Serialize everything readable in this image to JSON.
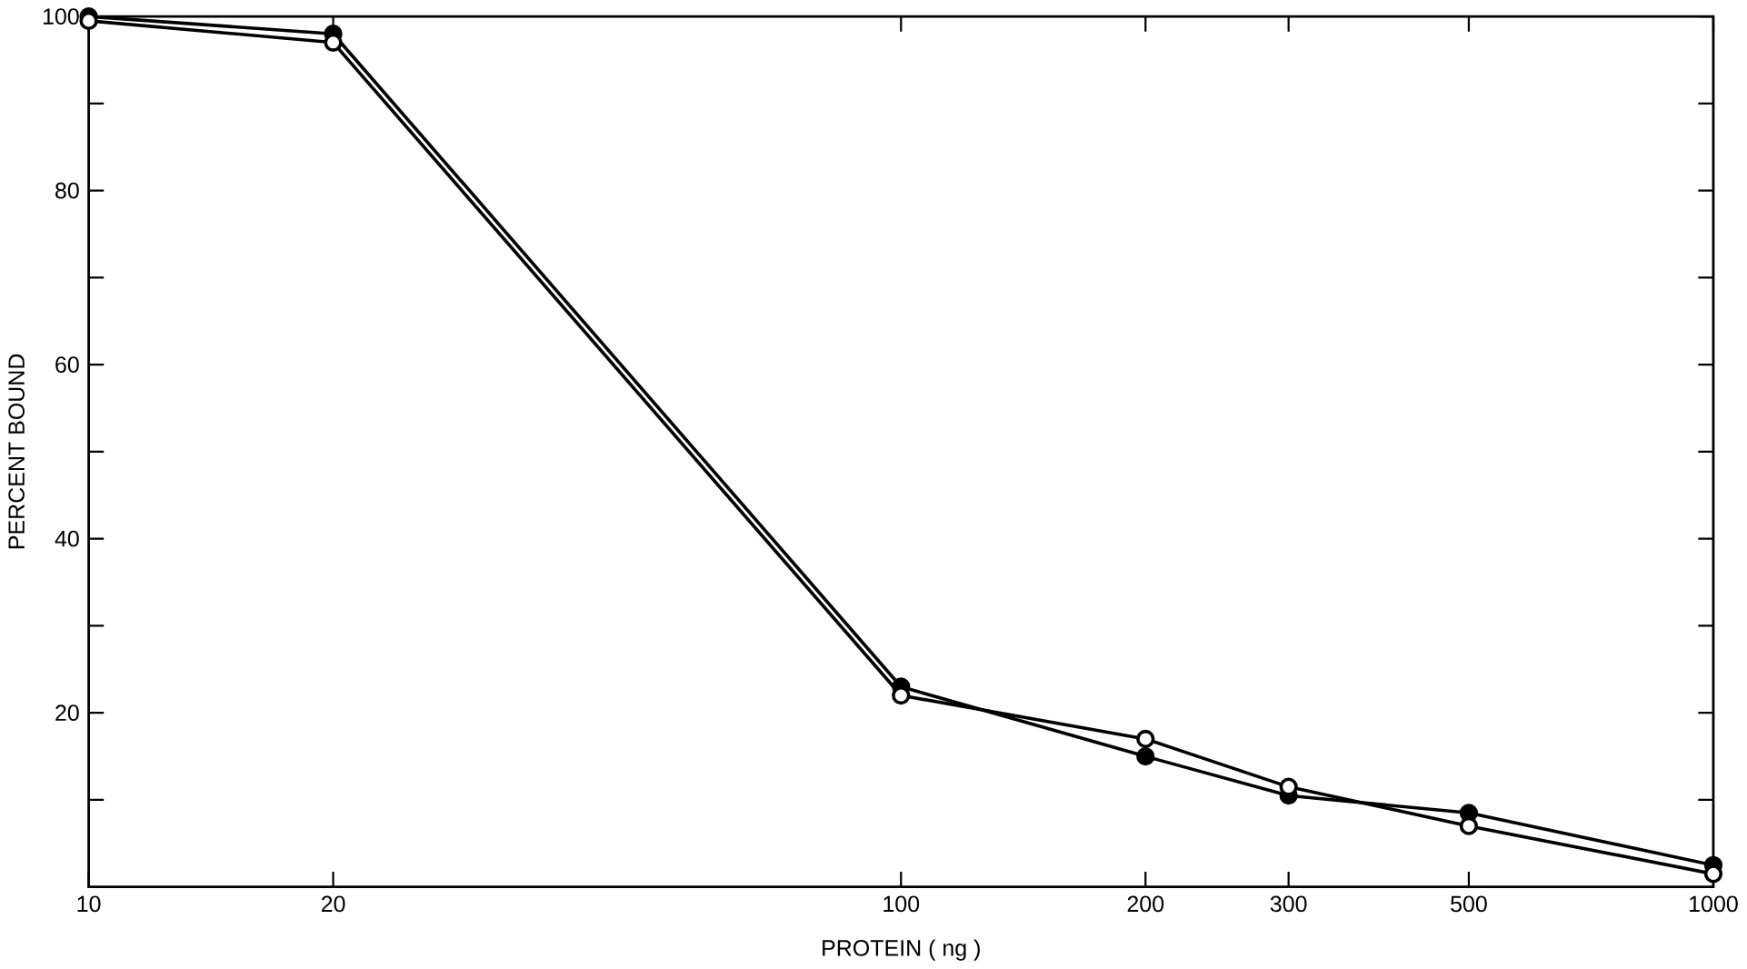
{
  "chart_data": {
    "type": "line",
    "xlabel": "PROTEIN ( ng )",
    "ylabel": "PERCENT BOUND",
    "log": "x",
    "x": [
      10,
      20,
      100,
      200,
      300,
      500,
      1000
    ],
    "series": [
      {
        "color": "#000000",
        "marker": "circle",
        "values": [
          100,
          98,
          23,
          15,
          10.5,
          8.5,
          2.5
        ]
      },
      {
        "color": "#000000",
        "marker": "circle",
        "values": [
          99.5,
          97,
          22,
          17,
          11.5,
          7,
          1.5
        ]
      }
    ],
    "xlim": [
      10,
      1000
    ],
    "xticks": [
      10,
      20,
      100,
      200,
      300,
      500,
      1000
    ],
    "ylim": [
      0,
      100
    ],
    "yticks": [
      {
        "value": 10,
        "label": null
      },
      20,
      {
        "value": 30,
        "label": null
      },
      40,
      {
        "value": 50,
        "label": null
      },
      60,
      {
        "value": 70,
        "label": null
      },
      80,
      {
        "value": 90,
        "label": null
      },
      100
    ],
    "grid": false,
    "line_style": "solid"
  }
}
